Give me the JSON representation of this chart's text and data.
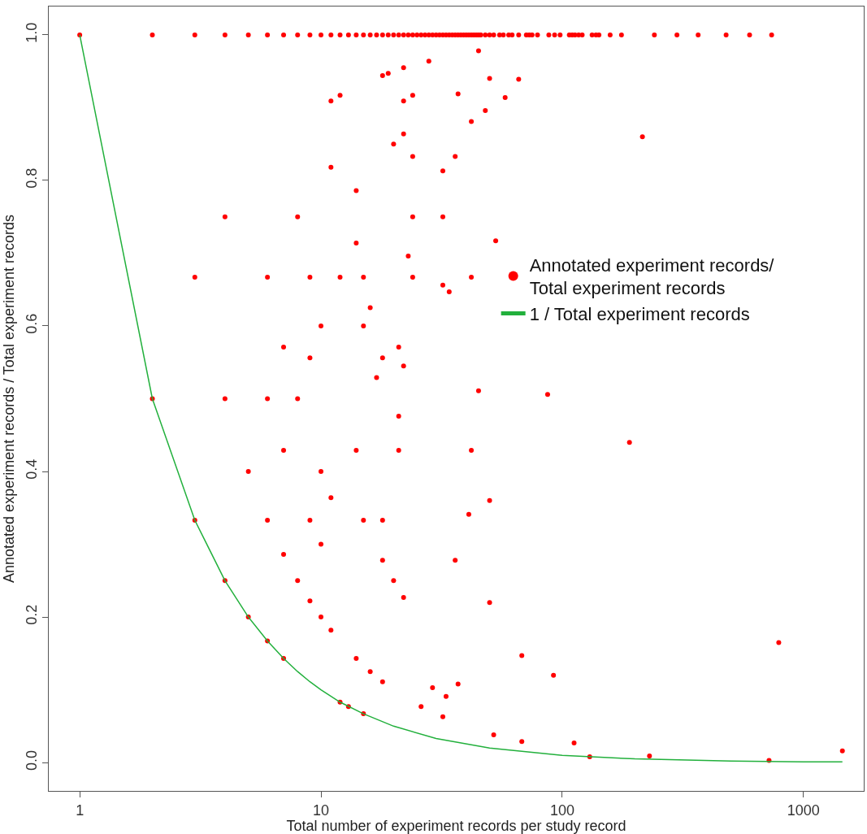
{
  "chart_data": {
    "type": "scatter",
    "xlabel": "Total number of experiment records per study record",
    "ylabel": "Annotated experiment records / Total experiment records",
    "log": "x",
    "xlim": [
      0.744,
      1778
    ],
    "xticks": [
      1,
      10,
      100,
      1000
    ],
    "ylim": [
      -0.039,
      1.039
    ],
    "yticks": [
      {
        "value": 0,
        "label": "0.0"
      },
      {
        "value": 0.2,
        "label": "0.2"
      },
      {
        "value": 0.4,
        "label": "0.4"
      },
      {
        "value": 0.6,
        "label": "0.6"
      },
      {
        "value": 0.8,
        "label": "0.8"
      },
      {
        "value": 1,
        "label": "1.0"
      }
    ],
    "legend": "right",
    "marker": "circle",
    "series": [
      {
        "name": "Annotated experiment records/\nTotal experiment records",
        "color": "#ff0000",
        "x": [
          1,
          2,
          3,
          4,
          5,
          6,
          7,
          8,
          9,
          10,
          11,
          12,
          13,
          14,
          15,
          16,
          17,
          18,
          19,
          20,
          21,
          22,
          23,
          24,
          25,
          26,
          27,
          28,
          29,
          30,
          31,
          32,
          33,
          34,
          35,
          36,
          37,
          38,
          39,
          40,
          41,
          42,
          43,
          44,
          45,
          46,
          48,
          50,
          52,
          55,
          57,
          60,
          62,
          66,
          71,
          73,
          75,
          79,
          88,
          93,
          98,
          107,
          110,
          113,
          117,
          121,
          133,
          138,
          142,
          158,
          176,
          241,
          299,
          366,
          478,
          598,
          738,
          2,
          3,
          4,
          5,
          6,
          7,
          12,
          13,
          15,
          3,
          4,
          4,
          5,
          6,
          6,
          6,
          7,
          7,
          7,
          8,
          8,
          8,
          9,
          9,
          9,
          9,
          10,
          10,
          10,
          10,
          11,
          11,
          11,
          11,
          12,
          12,
          14,
          14,
          14,
          14,
          15,
          15,
          15,
          16,
          16,
          17,
          18,
          18,
          18,
          18,
          18,
          19,
          20,
          20,
          21,
          21,
          21,
          22,
          22,
          22,
          22,
          22,
          23,
          24,
          24,
          24,
          24,
          26,
          28,
          29,
          32,
          32,
          32,
          32,
          33,
          34,
          36,
          36,
          37,
          37,
          41,
          42,
          42,
          42,
          45,
          45,
          48,
          50,
          50,
          50,
          52,
          53,
          58,
          66,
          68,
          68,
          87,
          92,
          112,
          130,
          190,
          215,
          230,
          720,
          790,
          1450
        ],
        "values": [
          1,
          1,
          1,
          1,
          1,
          1,
          1,
          1,
          1,
          1,
          1,
          1,
          1,
          1,
          1,
          1,
          1,
          1,
          1,
          1,
          1,
          1,
          1,
          1,
          1,
          1,
          1,
          1,
          1,
          1,
          1,
          1,
          1,
          1,
          1,
          1,
          1,
          1,
          1,
          1,
          1,
          1,
          1,
          1,
          1,
          1,
          1,
          1,
          1,
          1,
          1,
          1,
          1,
          1,
          1,
          1,
          1,
          1,
          1,
          1,
          1,
          1,
          1,
          1,
          1,
          1,
          1,
          1,
          1,
          1,
          1,
          1,
          1,
          1,
          1,
          1,
          1,
          0.5,
          0.333,
          0.25,
          0.2,
          0.167,
          0.143,
          0.083,
          0.077,
          0.067,
          0.667,
          0.75,
          0.5,
          0.4,
          0.667,
          0.5,
          0.333,
          0.571,
          0.429,
          0.286,
          0.75,
          0.5,
          0.25,
          0.667,
          0.556,
          0.333,
          0.222,
          0.6,
          0.4,
          0.3,
          0.2,
          0.909,
          0.818,
          0.364,
          0.182,
          0.917,
          0.667,
          0.786,
          0.714,
          0.429,
          0.143,
          0.667,
          0.6,
          0.333,
          0.625,
          0.125,
          0.529,
          0.944,
          0.556,
          0.333,
          0.278,
          0.111,
          0.947,
          0.85,
          0.25,
          0.571,
          0.476,
          0.429,
          0.955,
          0.909,
          0.864,
          0.545,
          0.227,
          0.696,
          0.917,
          0.833,
          0.75,
          0.667,
          0.077,
          0.964,
          0.103,
          0.813,
          0.75,
          0.656,
          0.063,
          0.091,
          0.647,
          0.833,
          0.278,
          0.919,
          0.108,
          0.341,
          0.881,
          0.667,
          0.429,
          0.978,
          0.511,
          0.896,
          0.94,
          0.36,
          0.22,
          0.038,
          0.717,
          0.914,
          0.939,
          0.147,
          0.029,
          0.506,
          0.12,
          0.027,
          0.008,
          0.44,
          0.86,
          0.009,
          0.003,
          0.165,
          0.016
        ]
      },
      {
        "name": "1 / Total experiment records",
        "color": "#22b03c",
        "type": "line",
        "marker": "none",
        "line_style": "solid",
        "x": [
          1,
          2,
          3,
          4,
          5,
          6,
          7,
          8,
          9,
          10,
          12,
          15,
          20,
          30,
          50,
          100,
          200,
          500,
          1000,
          1450
        ],
        "values": [
          1,
          0.5,
          0.333,
          0.25,
          0.2,
          0.167,
          0.143,
          0.125,
          0.111,
          0.1,
          0.083,
          0.067,
          0.05,
          0.033,
          0.02,
          0.01,
          0.005,
          0.002,
          0.001,
          0.001
        ]
      }
    ]
  }
}
